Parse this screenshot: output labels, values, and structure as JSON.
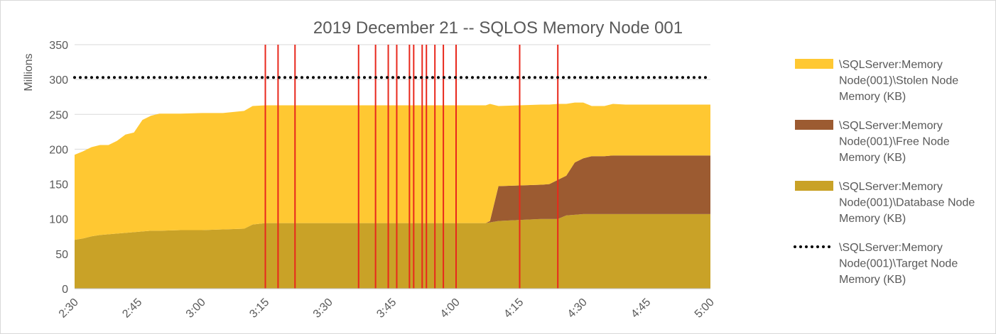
{
  "chart_data": {
    "type": "area",
    "title": "2019 December 21 -- SQLOS Memory Node 001",
    "ylabel": "Millions",
    "xlabel": "",
    "ylim": [
      0,
      350
    ],
    "yticks": [
      0,
      50,
      100,
      150,
      200,
      250,
      300,
      350
    ],
    "xlim": [
      "2:30",
      "5:00"
    ],
    "xticks": [
      "2:30",
      "2:45",
      "3:00",
      "3:15",
      "3:30",
      "3:45",
      "4:00",
      "4:15",
      "4:30",
      "4:45",
      "5:00"
    ],
    "grid": true,
    "legend_position": "right",
    "stacked": true,
    "series": [
      {
        "name": "\\SQLServer:Memory Node(001)\\Stolen Node Memory (KB)",
        "legend_lines": [
          "\\SQLServer:Memory",
          "Node(001)\\Stolen Node",
          "Memory (KB)"
        ],
        "color": "#FFC832",
        "style": "area",
        "points": [
          [
            "2:30",
            122
          ],
          [
            "2:32",
            125
          ],
          [
            "2:34",
            128
          ],
          [
            "2:36",
            129
          ],
          [
            "2:38",
            128
          ],
          [
            "2:40",
            133
          ],
          [
            "2:42",
            141
          ],
          [
            "2:44",
            143
          ],
          [
            "2:46",
            160
          ],
          [
            "2:48",
            165
          ],
          [
            "2:50",
            168
          ],
          [
            "2:55",
            167
          ],
          [
            "3:00",
            168
          ],
          [
            "3:05",
            167
          ],
          [
            "3:10",
            169
          ],
          [
            "3:12",
            170
          ],
          [
            "3:15",
            169
          ],
          [
            "3:30",
            169
          ],
          [
            "3:45",
            169
          ],
          [
            "4:00",
            169
          ],
          [
            "4:07",
            169
          ],
          [
            "4:08",
            168
          ],
          [
            "4:10",
            115
          ],
          [
            "4:20",
            115
          ],
          [
            "4:22",
            114
          ],
          [
            "4:24",
            109
          ],
          [
            "4:26",
            103
          ],
          [
            "4:28",
            86
          ],
          [
            "4:30",
            80
          ],
          [
            "4:32",
            72
          ],
          [
            "4:35",
            72
          ],
          [
            "4:37",
            74
          ],
          [
            "4:40",
            73
          ],
          [
            "4:50",
            73
          ],
          [
            "5:00",
            73
          ]
        ]
      },
      {
        "name": "\\SQLServer:Memory Node(001)\\Free Node Memory (KB)",
        "legend_lines": [
          "\\SQLServer:Memory",
          "Node(001)\\Free Node",
          "Memory (KB)"
        ],
        "color": "#9C5B31",
        "style": "area",
        "points": [
          [
            "2:30",
            0
          ],
          [
            "2:32",
            0
          ],
          [
            "2:34",
            0
          ],
          [
            "2:36",
            0
          ],
          [
            "2:38",
            0
          ],
          [
            "2:40",
            0
          ],
          [
            "2:42",
            0
          ],
          [
            "2:44",
            0
          ],
          [
            "2:46",
            0
          ],
          [
            "2:48",
            0
          ],
          [
            "2:50",
            0
          ],
          [
            "2:55",
            0
          ],
          [
            "3:00",
            0
          ],
          [
            "3:05",
            0
          ],
          [
            "3:10",
            0
          ],
          [
            "3:12",
            0
          ],
          [
            "3:15",
            0
          ],
          [
            "3:30",
            0
          ],
          [
            "3:45",
            0
          ],
          [
            "4:00",
            0
          ],
          [
            "4:07",
            0
          ],
          [
            "4:08",
            2
          ],
          [
            "4:10",
            50
          ],
          [
            "4:20",
            49
          ],
          [
            "4:22",
            50
          ],
          [
            "4:24",
            56
          ],
          [
            "4:26",
            57
          ],
          [
            "4:28",
            75
          ],
          [
            "4:30",
            80
          ],
          [
            "4:32",
            83
          ],
          [
            "4:35",
            83
          ],
          [
            "4:37",
            84
          ],
          [
            "4:40",
            84
          ],
          [
            "4:50",
            84
          ],
          [
            "5:00",
            84
          ]
        ]
      },
      {
        "name": "\\SQLServer:Memory Node(001)\\Database Node Memory (KB)",
        "legend_lines": [
          "\\SQLServer:Memory",
          "Node(001)\\Database Node",
          "Memory (KB)"
        ],
        "color": "#C9A227",
        "style": "area",
        "points": [
          [
            "2:30",
            70
          ],
          [
            "2:32",
            72
          ],
          [
            "2:34",
            75
          ],
          [
            "2:36",
            77
          ],
          [
            "2:38",
            78
          ],
          [
            "2:40",
            79
          ],
          [
            "2:42",
            80
          ],
          [
            "2:44",
            81
          ],
          [
            "2:46",
            82
          ],
          [
            "2:48",
            83
          ],
          [
            "2:50",
            83
          ],
          [
            "2:55",
            84
          ],
          [
            "3:00",
            84
          ],
          [
            "3:05",
            85
          ],
          [
            "3:10",
            86
          ],
          [
            "3:12",
            92
          ],
          [
            "3:15",
            94
          ],
          [
            "3:30",
            94
          ],
          [
            "3:45",
            94
          ],
          [
            "4:00",
            94
          ],
          [
            "4:07",
            94
          ],
          [
            "4:08",
            95
          ],
          [
            "4:10",
            97
          ],
          [
            "4:20",
            100
          ],
          [
            "4:22",
            100
          ],
          [
            "4:24",
            100
          ],
          [
            "4:26",
            105
          ],
          [
            "4:28",
            106
          ],
          [
            "4:30",
            107
          ],
          [
            "4:32",
            107
          ],
          [
            "4:35",
            107
          ],
          [
            "4:37",
            107
          ],
          [
            "4:40",
            107
          ],
          [
            "4:50",
            107
          ],
          [
            "5:00",
            107
          ]
        ]
      },
      {
        "name": "\\SQLServer:Memory Node(001)\\Target Node Memory (KB)",
        "legend_lines": [
          "\\SQLServer:Memory",
          "Node(001)\\Target Node",
          "Memory (KB)"
        ],
        "color": "#000000",
        "style": "dotted-line",
        "points": [
          [
            "2:30",
            303
          ],
          [
            "5:00",
            303
          ]
        ]
      }
    ],
    "vertical_markers": {
      "color": "#E8281C",
      "x": [
        "3:15",
        "3:18",
        "3:22",
        "3:37",
        "3:41",
        "3:44",
        "3:46",
        "3:49",
        "3:50",
        "3:52",
        "3:53",
        "3:55",
        "3:57",
        "4:00",
        "4:15",
        "4:24"
      ]
    }
  }
}
